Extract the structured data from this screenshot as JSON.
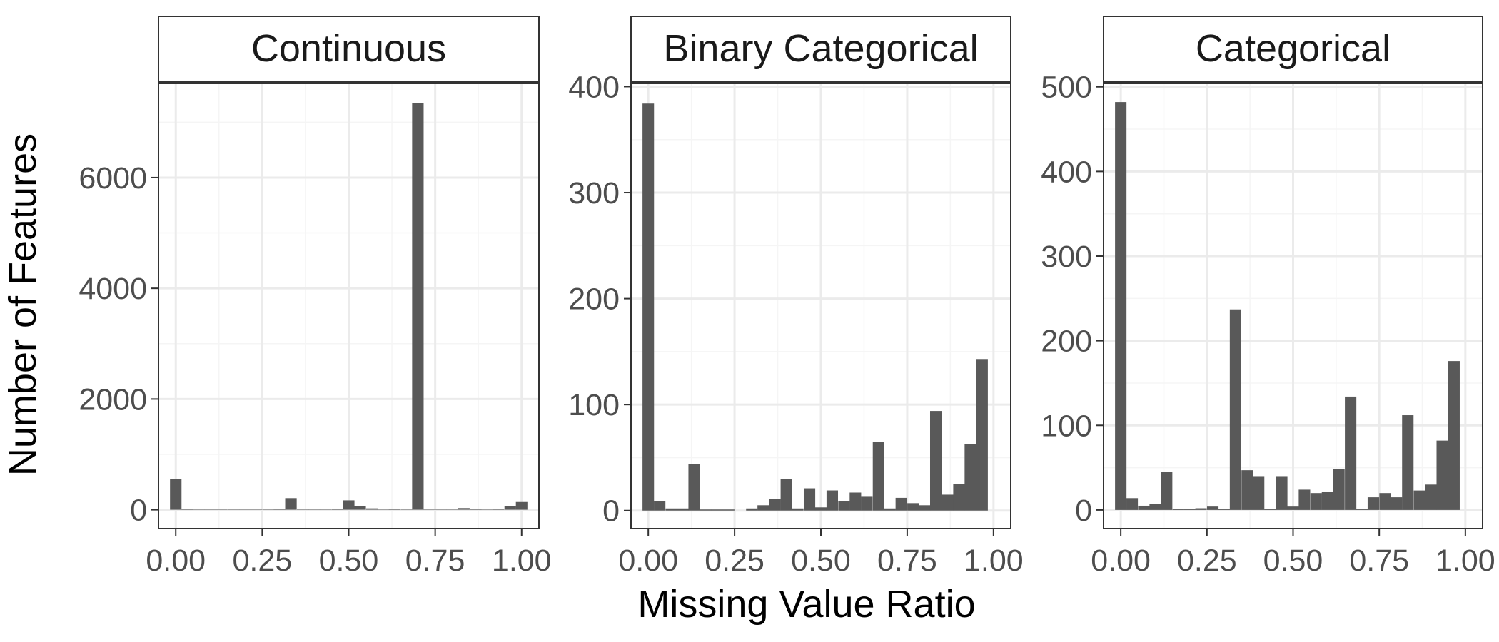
{
  "figure": {
    "xlabel": "Missing Value Ratio",
    "ylabel": "Number of Features"
  },
  "colors": {
    "bar": "#595959",
    "panel_border": "#333333",
    "grid_major": "#ebebeb",
    "grid_minor": "#f5f5f5",
    "strip_fill": "#ffffff",
    "background": "#ffffff"
  },
  "chart_data": [
    {
      "type": "bar",
      "title": "Continuous",
      "xlim": [
        -0.05,
        1.05
      ],
      "xticks": [
        0.0,
        0.25,
        0.5,
        0.75,
        1.0
      ],
      "xtick_labels": [
        "0.00",
        "0.25",
        "0.50",
        "0.75",
        "1.00"
      ],
      "ylim": [
        -340,
        7700
      ],
      "yticks": [
        0,
        2000,
        4000,
        6000
      ],
      "ytick_labels": [
        "0",
        "2000",
        "4000",
        "6000"
      ],
      "bin_width": 0.0333,
      "x": [
        0.0,
        0.033,
        0.067,
        0.1,
        0.133,
        0.167,
        0.2,
        0.233,
        0.267,
        0.3,
        0.333,
        0.367,
        0.4,
        0.433,
        0.467,
        0.5,
        0.533,
        0.567,
        0.6,
        0.633,
        0.667,
        0.7,
        0.733,
        0.767,
        0.8,
        0.833,
        0.867,
        0.9,
        0.933,
        0.967,
        1.0
      ],
      "values": [
        560,
        20,
        5,
        5,
        5,
        5,
        5,
        5,
        5,
        20,
        210,
        5,
        5,
        5,
        20,
        170,
        60,
        25,
        5,
        20,
        5,
        7350,
        5,
        5,
        5,
        30,
        10,
        5,
        20,
        60,
        140
      ],
      "grid": true
    },
    {
      "type": "bar",
      "title": "Binary Categorical",
      "xlim": [
        -0.05,
        1.05
      ],
      "xticks": [
        0.0,
        0.25,
        0.5,
        0.75,
        1.0
      ],
      "xtick_labels": [
        "0.00",
        "0.25",
        "0.50",
        "0.75",
        "1.00"
      ],
      "ylim": [
        -17,
        403
      ],
      "yticks": [
        0,
        100,
        200,
        300,
        400
      ],
      "ytick_labels": [
        "0",
        "100",
        "200",
        "300",
        "400"
      ],
      "bin_width": 0.0333,
      "x": [
        0.0,
        0.033,
        0.067,
        0.1,
        0.133,
        0.167,
        0.2,
        0.233,
        0.267,
        0.3,
        0.333,
        0.367,
        0.4,
        0.433,
        0.467,
        0.5,
        0.533,
        0.567,
        0.6,
        0.633,
        0.667,
        0.7,
        0.733,
        0.767,
        0.8,
        0.833,
        0.867,
        0.9,
        0.933,
        0.967,
        1.0
      ],
      "values": [
        384,
        9,
        2,
        2,
        44,
        1,
        1,
        1,
        0,
        2,
        5,
        11,
        30,
        2,
        21,
        3,
        19,
        9,
        17,
        13,
        65,
        2,
        12,
        7,
        5,
        94,
        15,
        25,
        63,
        143,
        0
      ],
      "grid": true
    },
    {
      "type": "bar",
      "title": "Categorical",
      "xlim": [
        -0.05,
        1.05
      ],
      "xticks": [
        0.0,
        0.25,
        0.5,
        0.75,
        1.0
      ],
      "xtick_labels": [
        "0.00",
        "0.25",
        "0.50",
        "0.75",
        "1.00"
      ],
      "ylim": [
        -22,
        504
      ],
      "yticks": [
        0,
        100,
        200,
        300,
        400,
        500
      ],
      "ytick_labels": [
        "0",
        "100",
        "200",
        "300",
        "400",
        "500"
      ],
      "bin_width": 0.0333,
      "x": [
        0.0,
        0.033,
        0.067,
        0.1,
        0.133,
        0.167,
        0.2,
        0.233,
        0.267,
        0.3,
        0.333,
        0.367,
        0.4,
        0.433,
        0.467,
        0.5,
        0.533,
        0.567,
        0.6,
        0.633,
        0.667,
        0.7,
        0.733,
        0.767,
        0.8,
        0.833,
        0.867,
        0.9,
        0.933,
        0.967,
        1.0
      ],
      "values": [
        482,
        14,
        5,
        7,
        45,
        1,
        1,
        2,
        4,
        1,
        237,
        47,
        40,
        1,
        40,
        4,
        24,
        20,
        21,
        48,
        134,
        1,
        15,
        20,
        15,
        112,
        23,
        30,
        82,
        176,
        0
      ],
      "grid": true
    }
  ]
}
